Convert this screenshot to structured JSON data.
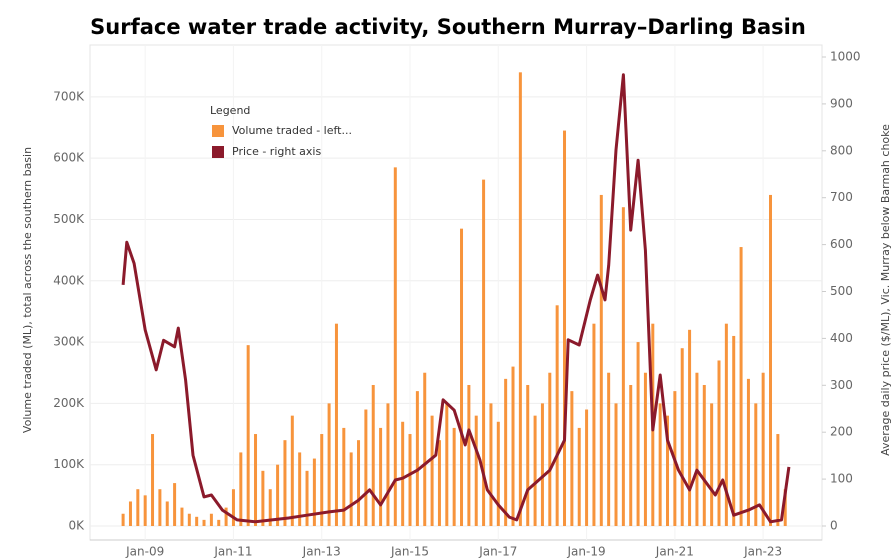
{
  "chart_data": {
    "type": "bar-line",
    "title": "Surface water trade activity, Southern Murray–Darling Basin",
    "y_label": "Volume traded (ML), total across the southern basin",
    "y2_label": "Average daily price ($/ML), Vic. Murray below Barmah choke",
    "legend_title": "Legend",
    "legend_position": "upper left",
    "grid": true,
    "xlim": [
      "2007-10",
      "2024-05"
    ],
    "xticks": [
      {
        "value": "2009-01",
        "label": "Jan-09"
      },
      {
        "value": "2011-01",
        "label": "Jan-11"
      },
      {
        "value": "2013-01",
        "label": "Jan-13"
      },
      {
        "value": "2015-01",
        "label": "Jan-15"
      },
      {
        "value": "2017-01",
        "label": "Jan-17"
      },
      {
        "value": "2019-01",
        "label": "Jan-19"
      },
      {
        "value": "2021-01",
        "label": "Jan-21"
      },
      {
        "value": "2023-01",
        "label": "Jan-23"
      }
    ],
    "ylim": [
      0,
      765000
    ],
    "yticks": [
      {
        "value": 0,
        "label": "0K"
      },
      {
        "value": 100000,
        "label": "100K"
      },
      {
        "value": 200000,
        "label": "200K"
      },
      {
        "value": 300000,
        "label": "300K"
      },
      {
        "value": 400000,
        "label": "400K"
      },
      {
        "value": 500000,
        "label": "500K"
      },
      {
        "value": 600000,
        "label": "600K"
      },
      {
        "value": 700000,
        "label": "700K"
      }
    ],
    "y2lim": [
      0,
      1000
    ],
    "y2ticks": [
      0,
      100,
      200,
      300,
      400,
      500,
      600,
      700,
      800,
      900,
      1000
    ],
    "series": [
      {
        "name": "Volume traded - left...",
        "color": "#f7943c",
        "kind": "bar",
        "x": [
          "2008-07",
          "2008-09",
          "2008-11",
          "2009-01",
          "2009-03",
          "2009-05",
          "2009-07",
          "2009-09",
          "2009-11",
          "2010-01",
          "2010-03",
          "2010-05",
          "2010-07",
          "2010-09",
          "2010-11",
          "2011-01",
          "2011-03",
          "2011-05",
          "2011-07",
          "2011-09",
          "2011-11",
          "2012-01",
          "2012-03",
          "2012-05",
          "2012-07",
          "2012-09",
          "2012-11",
          "2013-01",
          "2013-03",
          "2013-05",
          "2013-07",
          "2013-09",
          "2013-11",
          "2014-01",
          "2014-03",
          "2014-05",
          "2014-07",
          "2014-09",
          "2014-11",
          "2015-01",
          "2015-03",
          "2015-05",
          "2015-07",
          "2015-09",
          "2015-11",
          "2016-01",
          "2016-03",
          "2016-05",
          "2016-07",
          "2016-09",
          "2016-11",
          "2017-01",
          "2017-03",
          "2017-05",
          "2017-07",
          "2017-09",
          "2017-11",
          "2018-01",
          "2018-03",
          "2018-05",
          "2018-07",
          "2018-09",
          "2018-11",
          "2019-01",
          "2019-03",
          "2019-05",
          "2019-07",
          "2019-09",
          "2019-11",
          "2020-01",
          "2020-03",
          "2020-05",
          "2020-07",
          "2020-09",
          "2020-11",
          "2021-01",
          "2021-03",
          "2021-05",
          "2021-07",
          "2021-09",
          "2021-11",
          "2022-01",
          "2022-03",
          "2022-05",
          "2022-07",
          "2022-09",
          "2022-11",
          "2023-01",
          "2023-03",
          "2023-05",
          "2023-07"
        ],
        "values": [
          20000,
          40000,
          60000,
          50000,
          150000,
          60000,
          40000,
          70000,
          30000,
          20000,
          15000,
          10000,
          20000,
          10000,
          30000,
          60000,
          120000,
          295000,
          150000,
          90000,
          60000,
          100000,
          140000,
          180000,
          120000,
          90000,
          110000,
          150000,
          200000,
          330000,
          160000,
          120000,
          140000,
          190000,
          230000,
          160000,
          200000,
          585000,
          170000,
          150000,
          220000,
          250000,
          180000,
          140000,
          200000,
          160000,
          485000,
          230000,
          180000,
          565000,
          200000,
          170000,
          240000,
          260000,
          740000,
          230000,
          180000,
          200000,
          250000,
          360000,
          645000,
          220000,
          160000,
          190000,
          330000,
          540000,
          250000,
          200000,
          520000,
          230000,
          300000,
          250000,
          330000,
          200000,
          180000,
          220000,
          290000,
          320000,
          250000,
          230000,
          200000,
          270000,
          330000,
          310000,
          455000,
          240000,
          200000,
          250000,
          540000,
          150000,
          60000
        ]
      },
      {
        "name": "Price - right axis",
        "color": "#8b1a2b",
        "kind": "line",
        "axis": "y2",
        "x": [
          "2008-07",
          "2008-08",
          "2008-10",
          "2009-01",
          "2009-04",
          "2009-06",
          "2009-09",
          "2009-10",
          "2009-12",
          "2010-02",
          "2010-05",
          "2010-07",
          "2010-10",
          "2011-02",
          "2011-07",
          "2012-04",
          "2012-09",
          "2013-03",
          "2013-07",
          "2013-11",
          "2014-02",
          "2014-05",
          "2014-09",
          "2014-11",
          "2015-03",
          "2015-08",
          "2015-10",
          "2016-01",
          "2016-04",
          "2016-05",
          "2016-08",
          "2016-10",
          "2017-01",
          "2017-04",
          "2017-06",
          "2017-09",
          "2017-12",
          "2018-03",
          "2018-07",
          "2018-08",
          "2018-11",
          "2019-02",
          "2019-04",
          "2019-06",
          "2019-07",
          "2019-09",
          "2019-11",
          "2020-01",
          "2020-03",
          "2020-05",
          "2020-07",
          "2020-09",
          "2020-11",
          "2021-02",
          "2021-05",
          "2021-07",
          "2021-12",
          "2022-02",
          "2022-05",
          "2022-09",
          "2022-12",
          "2023-03",
          "2023-06",
          "2023-08"
        ],
        "values": [
          514,
          605,
          560,
          418,
          333,
          396,
          382,
          422,
          311,
          151,
          62,
          66,
          34,
          13,
          9,
          17,
          23,
          30,
          34,
          55,
          77,
          45,
          98,
          102,
          119,
          151,
          269,
          247,
          173,
          205,
          141,
          77,
          45,
          19,
          13,
          77,
          98,
          119,
          183,
          397,
          386,
          482,
          535,
          482,
          556,
          802,
          962,
          631,
          780,
          588,
          205,
          322,
          183,
          119,
          77,
          119,
          66,
          98,
          23,
          34,
          45,
          9,
          13,
          126
        ]
      }
    ]
  }
}
